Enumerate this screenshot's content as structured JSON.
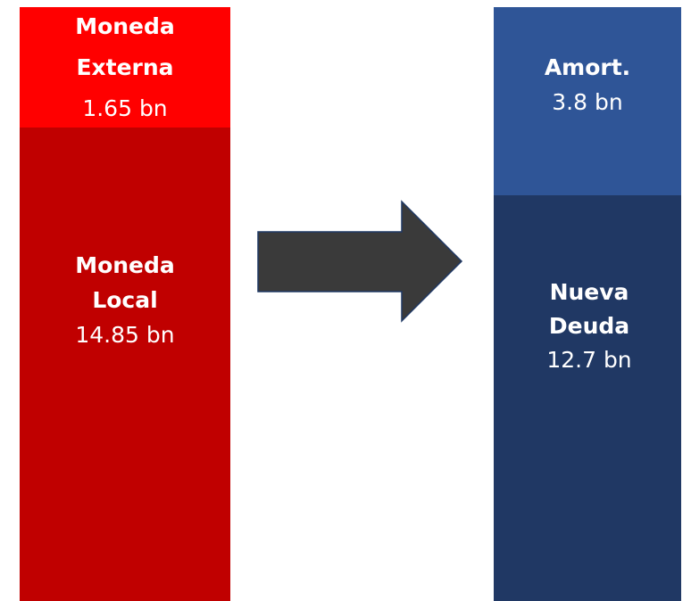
{
  "nodes": [
    {
      "label": [
        "Moneda",
        "Externa"
      ],
      "value": "1.65 bn"
    },
    {
      "label": [
        "Moneda",
        "Local"
      ],
      "value": "14.85 bn"
    },
    {
      "label": [
        "Amort."
      ],
      "value": "3.8 bn"
    },
    {
      "label": [
        "Nueva",
        "Deuda"
      ],
      "value": "12.7 bn"
    }
  ]
}
